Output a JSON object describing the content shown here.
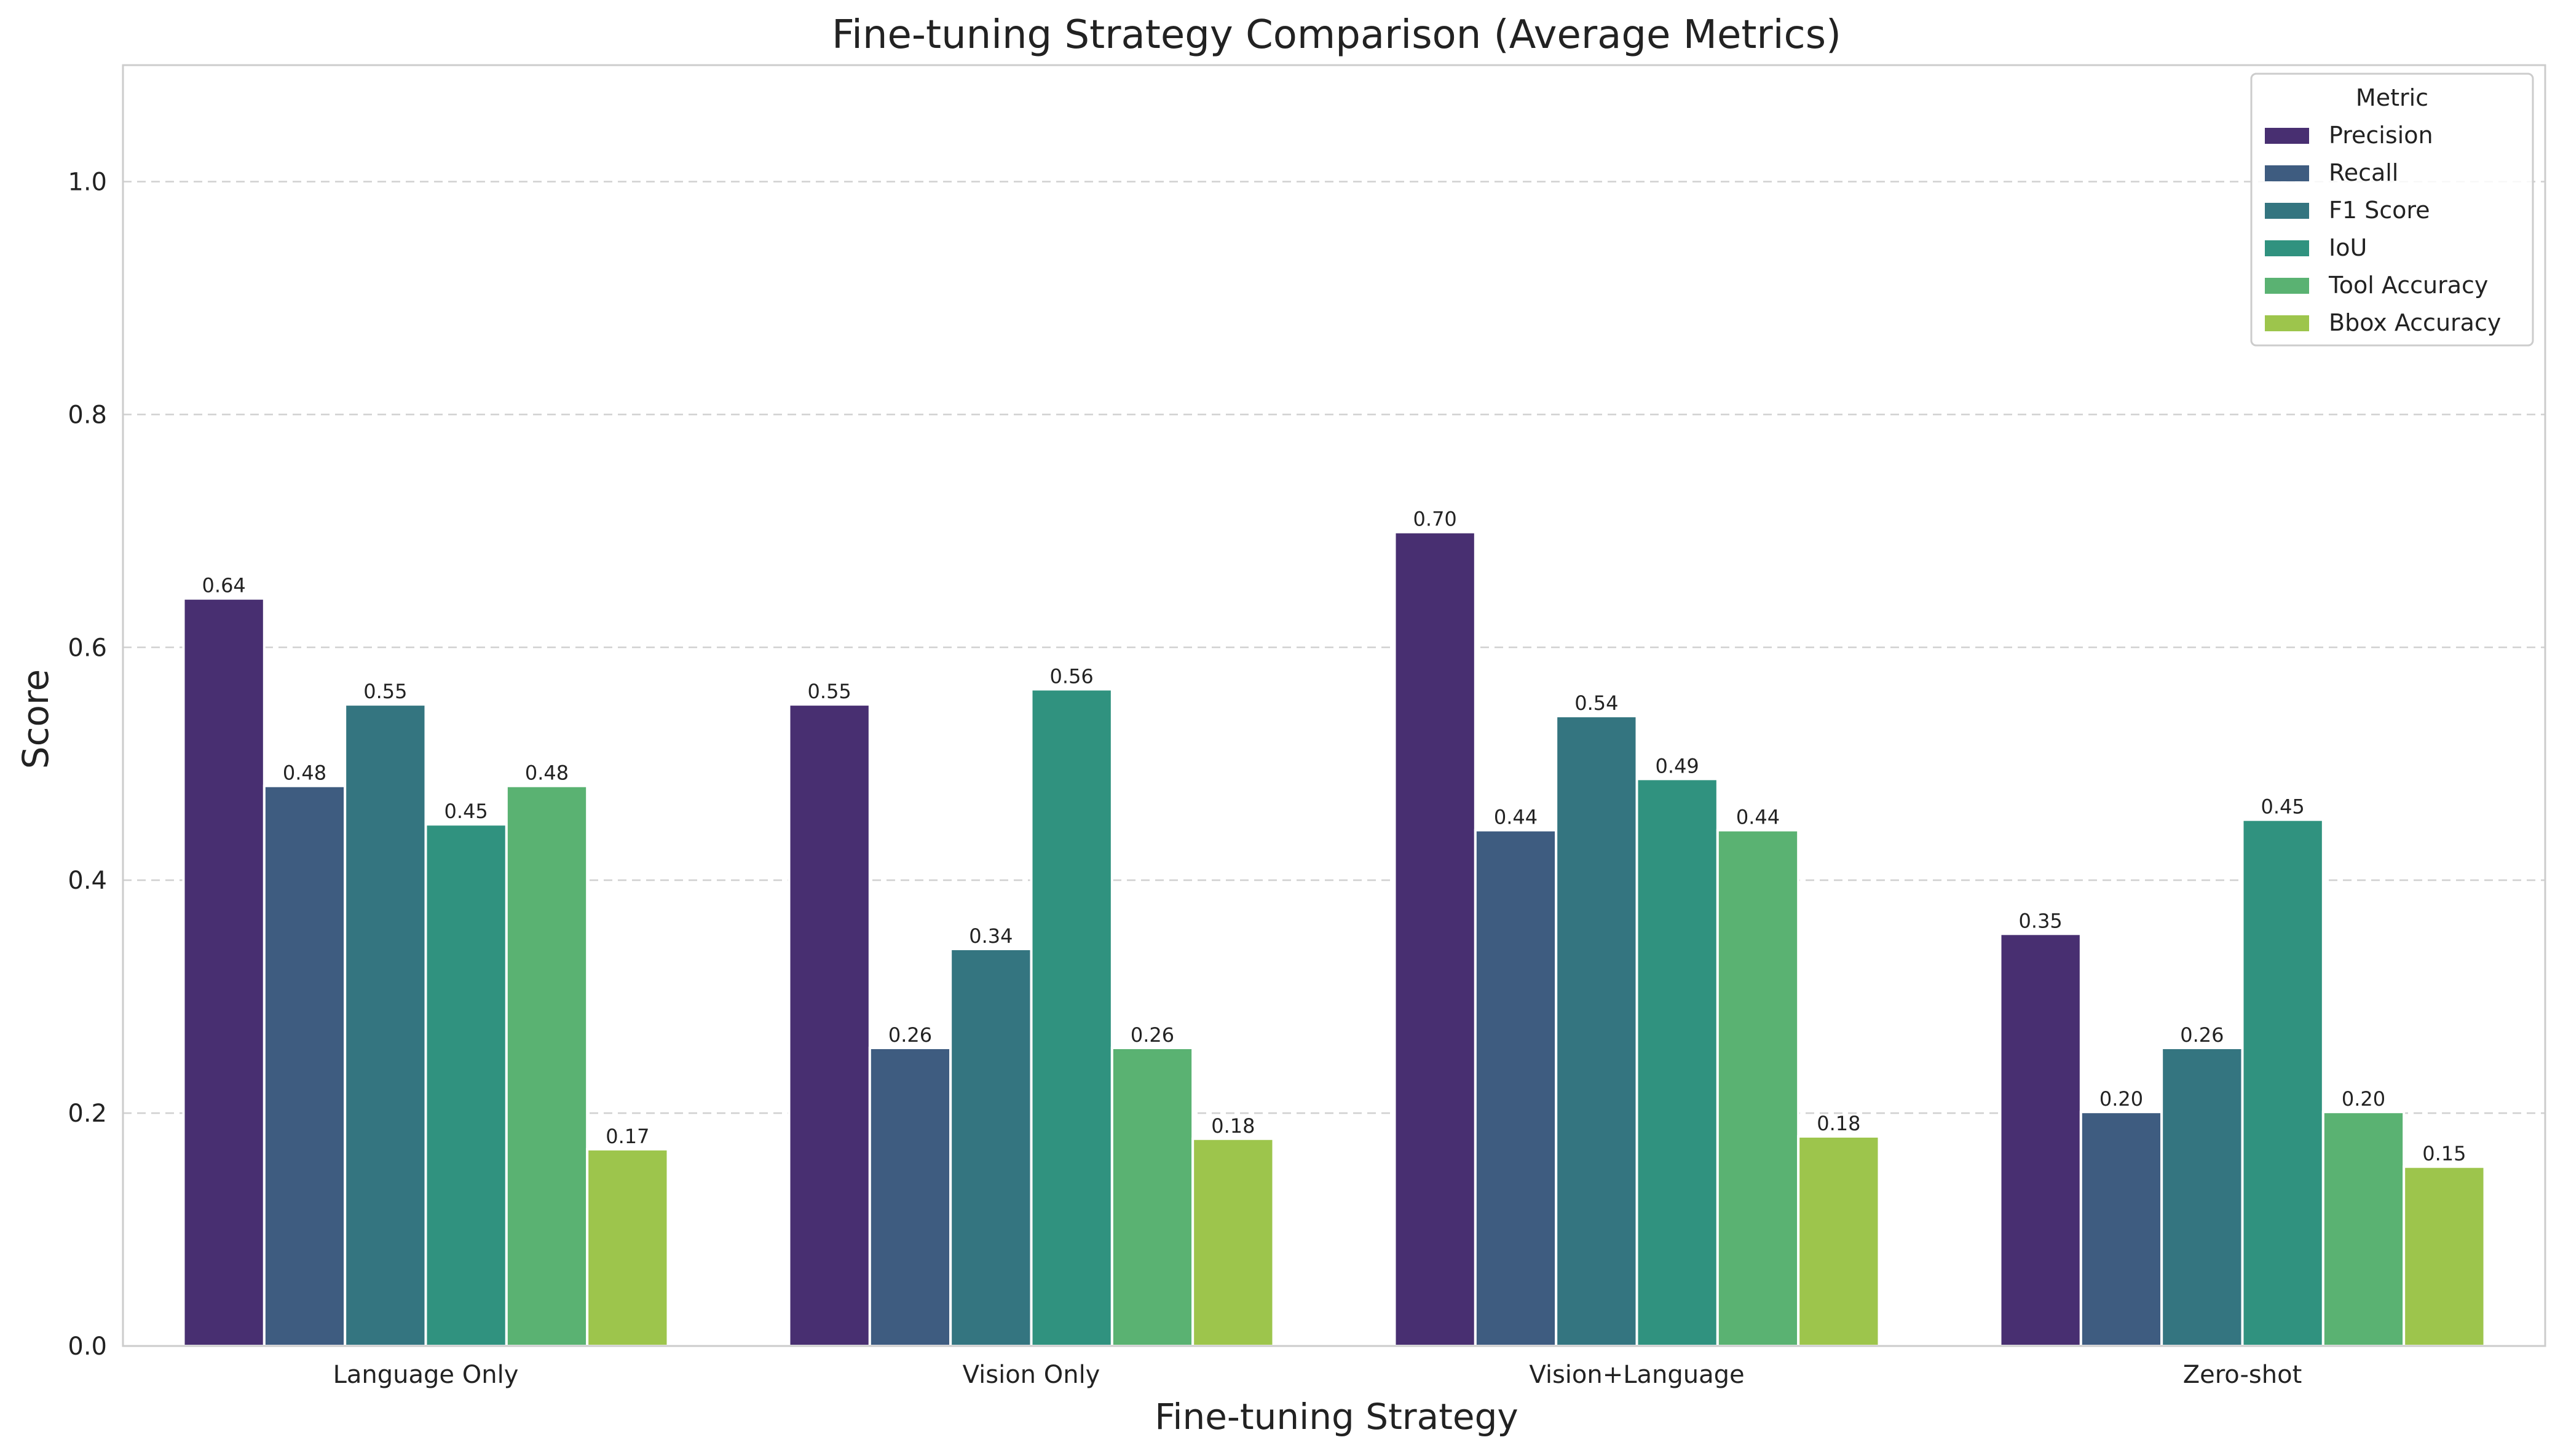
{
  "chart_data": {
    "type": "bar",
    "title": "Fine-tuning Strategy Comparison (Average Metrics)",
    "xlabel": "Fine-tuning Strategy",
    "ylabel": "Score",
    "ylim": [
      0,
      1.1
    ],
    "yticks": [
      0.0,
      0.2,
      0.4,
      0.6,
      0.8,
      1.0
    ],
    "ytick_labels": [
      "0.0",
      "0.2",
      "0.4",
      "0.6",
      "0.8",
      "1.0"
    ],
    "grid": true,
    "legend": {
      "title": "Metric",
      "position": "top-right"
    },
    "categories": [
      "Language Only",
      "Vision Only",
      "Vision+Language",
      "Zero-shot"
    ],
    "series": [
      {
        "name": "Precision",
        "color": "#482f71",
        "values": [
          0.642,
          0.551,
          0.699,
          0.354
        ],
        "labels": [
          "0.64",
          "0.55",
          "0.70",
          "0.35"
        ]
      },
      {
        "name": "Recall",
        "color": "#3e5c80",
        "values": [
          0.481,
          0.256,
          0.443,
          0.201
        ],
        "labels": [
          "0.48",
          "0.26",
          "0.44",
          "0.20"
        ]
      },
      {
        "name": "F1 Score",
        "color": "#347580",
        "values": [
          0.551,
          0.341,
          0.541,
          0.256
        ],
        "labels": [
          "0.55",
          "0.34",
          "0.54",
          "0.26"
        ]
      },
      {
        "name": "IoU",
        "color": "#30927f",
        "values": [
          0.448,
          0.564,
          0.487,
          0.452
        ],
        "labels": [
          "0.45",
          "0.56",
          "0.49",
          "0.45"
        ]
      },
      {
        "name": "Tool Accuracy",
        "color": "#5ab272",
        "values": [
          0.481,
          0.256,
          0.443,
          0.201
        ],
        "labels": [
          "0.48",
          "0.26",
          "0.44",
          "0.20"
        ]
      },
      {
        "name": "Bbox Accuracy",
        "color": "#9dc54c",
        "values": [
          0.169,
          0.178,
          0.18,
          0.154
        ],
        "labels": [
          "0.17",
          "0.18",
          "0.18",
          "0.15"
        ]
      }
    ]
  }
}
